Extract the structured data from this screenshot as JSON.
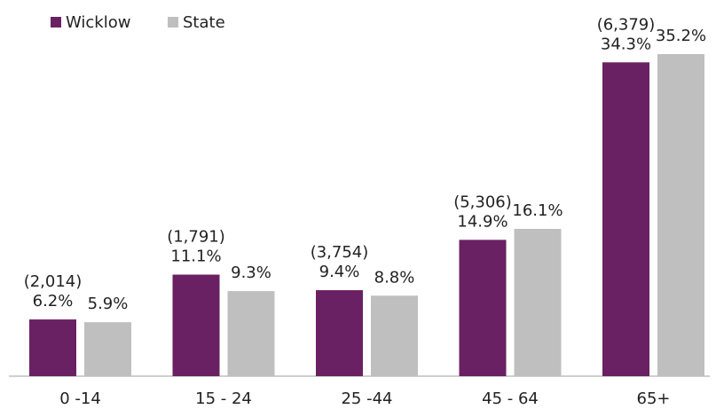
{
  "chart_data": {
    "type": "bar",
    "categories": [
      "0 -14",
      "15 - 24",
      "25 -44",
      "45 - 64",
      "65+"
    ],
    "series": [
      {
        "name": "Wicklow",
        "color": "#6a2163",
        "values": [
          6.2,
          11.1,
          9.4,
          14.9,
          34.3
        ],
        "value_labels": [
          "6.2%",
          "11.1%",
          "9.4%",
          "14.9%",
          "34.3%"
        ],
        "annotations": [
          "(2,014)",
          "(1,791)",
          "(3,754)",
          "(5,306)",
          "(6,379)"
        ]
      },
      {
        "name": "State",
        "color": "#bfbfbf",
        "values": [
          5.9,
          9.3,
          8.8,
          16.1,
          35.2
        ],
        "value_labels": [
          "5.9%",
          "9.3%",
          "8.8%",
          "16.1%",
          "35.2%"
        ]
      }
    ],
    "legend": "top-left"
  }
}
